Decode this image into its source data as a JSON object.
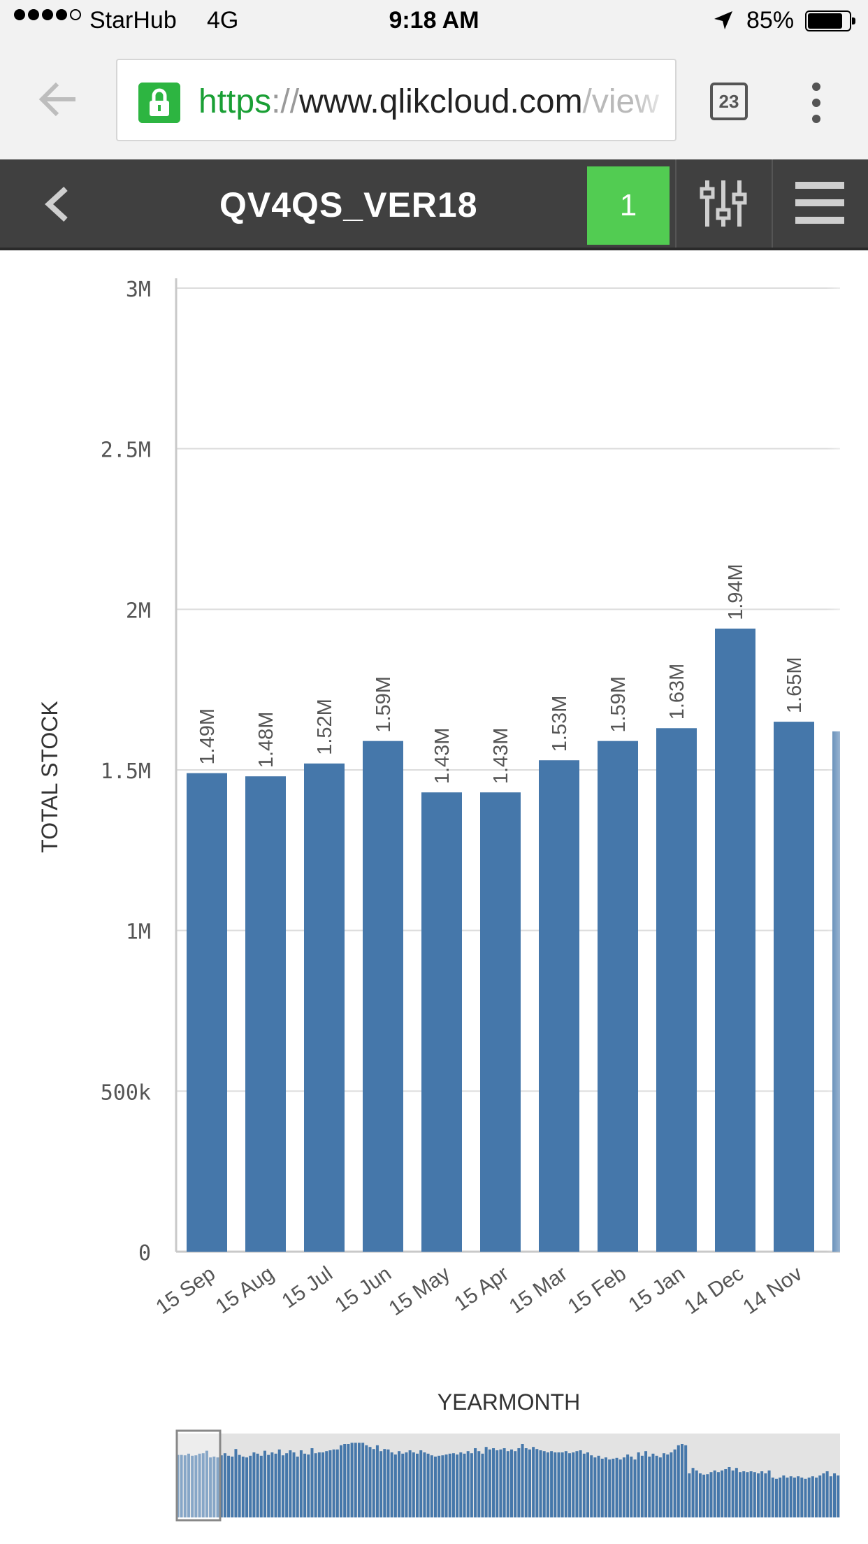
{
  "status_bar": {
    "carrier": "StarHub",
    "network": "4G",
    "time": "9:18 AM",
    "battery": "85%",
    "battery_level": 0.85
  },
  "browser": {
    "url_protocol": "https",
    "url_separator": "://",
    "url_host": "www.qlikcloud.com",
    "url_path": "/view",
    "tab_count": "23"
  },
  "app_bar": {
    "title": "QV4QS_VER18",
    "selection_count": "1"
  },
  "colors": {
    "bar": "#4577aa",
    "accent_green": "#52cc52",
    "toolbar": "#404040",
    "scrollbar_track": "#e3e3e3"
  },
  "chart_data": {
    "type": "bar",
    "ylabel": "TOTAL STOCK",
    "xlabel": "YEARMONTH",
    "ylim": [
      0,
      3000000
    ],
    "grid": true,
    "y_ticks": [
      0,
      500000,
      1000000,
      1500000,
      2000000,
      2500000,
      3000000
    ],
    "y_tick_labels": [
      "0",
      "500k",
      "1M",
      "1.5M",
      "2M",
      "2.5M",
      "3M"
    ],
    "categories": [
      "15 Sep",
      "15 Aug",
      "15 Jul",
      "15 Jun",
      "15 May",
      "15 Apr",
      "15 Mar",
      "15 Feb",
      "15 Jan",
      "14 Dec",
      "14 Nov",
      ""
    ],
    "values": [
      1490000,
      1480000,
      1520000,
      1590000,
      1430000,
      1430000,
      1530000,
      1590000,
      1630000,
      1940000,
      1650000,
      1620000
    ],
    "value_labels": [
      "1.49M",
      "1.48M",
      "1.52M",
      "1.59M",
      "1.43M",
      "1.43M",
      "1.53M",
      "1.59M",
      "1.63M",
      "1.94M",
      "1.65M",
      ""
    ],
    "mini_chart": {
      "values": [
        1.49,
        1.49,
        1.48,
        1.52,
        1.47,
        1.48,
        1.52,
        1.53,
        1.59,
        1.43,
        1.45,
        1.43,
        1.48,
        1.53,
        1.47,
        1.45,
        1.63,
        1.49,
        1.45,
        1.43,
        1.47,
        1.55,
        1.52,
        1.47,
        1.59,
        1.49,
        1.55,
        1.52,
        1.62,
        1.48,
        1.53,
        1.6,
        1.55,
        1.45,
        1.6,
        1.52,
        1.5,
        1.65,
        1.53,
        1.55,
        1.55,
        1.58,
        1.6,
        1.62,
        1.62,
        1.72,
        1.75,
        1.75,
        1.78,
        1.78,
        1.78,
        1.78,
        1.72,
        1.68,
        1.63,
        1.72,
        1.58,
        1.63,
        1.62,
        1.55,
        1.5,
        1.58,
        1.52,
        1.55,
        1.6,
        1.55,
        1.52,
        1.6,
        1.55,
        1.52,
        1.48,
        1.45,
        1.47,
        1.48,
        1.5,
        1.52,
        1.53,
        1.5,
        1.55,
        1.52,
        1.58,
        1.53,
        1.65,
        1.58,
        1.52,
        1.68,
        1.62,
        1.65,
        1.6,
        1.62,
        1.65,
        1.58,
        1.62,
        1.58,
        1.65,
        1.75,
        1.65,
        1.62,
        1.68,
        1.63,
        1.6,
        1.58,
        1.55,
        1.58,
        1.55,
        1.55,
        1.55,
        1.58,
        1.53,
        1.55,
        1.58,
        1.6,
        1.52,
        1.55,
        1.48,
        1.43,
        1.47,
        1.4,
        1.43,
        1.38,
        1.4,
        1.42,
        1.38,
        1.43,
        1.5,
        1.45,
        1.38,
        1.55,
        1.47,
        1.58,
        1.45,
        1.52,
        1.47,
        1.43,
        1.53,
        1.5,
        1.55,
        1.62,
        1.72,
        1.75,
        1.72,
        1.05,
        1.18,
        1.12,
        1.05,
        1.02,
        1.03,
        1.08,
        1.12,
        1.08,
        1.12,
        1.15,
        1.2,
        1.12,
        1.18,
        1.08,
        1.1,
        1.08,
        1.1,
        1.08,
        1.05,
        1.1,
        1.05,
        1.12,
        0.95,
        0.92,
        0.95,
        1.0,
        0.95,
        0.98,
        0.95,
        0.98,
        0.95,
        0.92,
        0.95,
        0.98,
        0.95,
        1.0,
        1.05,
        1.1,
        0.98,
        1.05,
        1.0
      ]
    }
  }
}
